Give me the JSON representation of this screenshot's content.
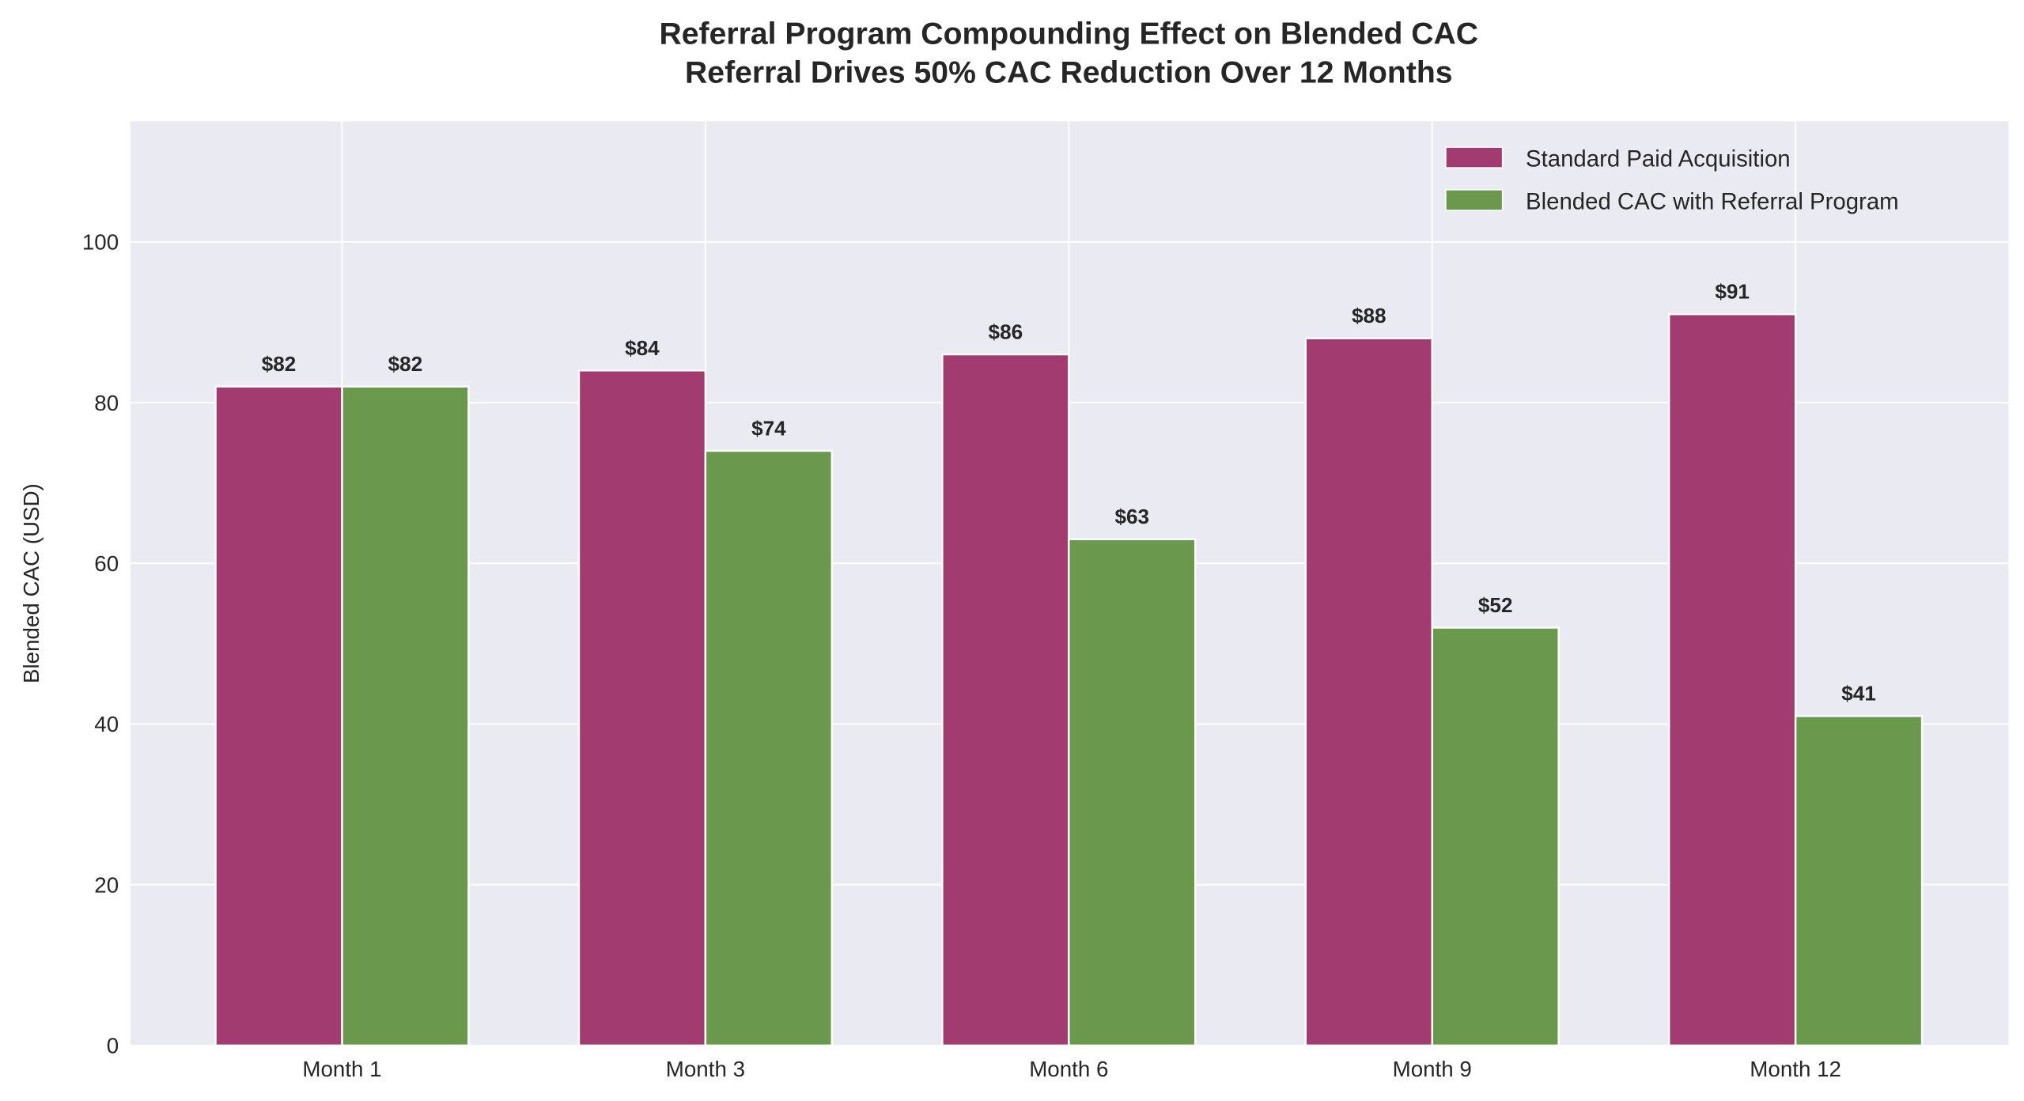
{
  "chart_data": {
    "type": "bar",
    "title": "Referral Program Compounding Effect on Blended CAC",
    "subtitle": "Referral Drives 50% CAC Reduction Over 12 Months",
    "xlabel": "",
    "ylabel": "Blended CAC (USD)",
    "categories": [
      "Month 1",
      "Month 3",
      "Month 6",
      "Month 9",
      "Month 12"
    ],
    "series": [
      {
        "name": "Standard Paid Acquisition",
        "color": "#a23b6f",
        "values": [
          82,
          84,
          86,
          88,
          91
        ],
        "labels": [
          "$82",
          "$84",
          "$86",
          "$88",
          "$91"
        ]
      },
      {
        "name": "Blended CAC with Referral Program",
        "color": "#6a994e",
        "values": [
          82,
          74,
          63,
          52,
          41
        ],
        "labels": [
          "$82",
          "$74",
          "$63",
          "$52",
          "$41"
        ]
      }
    ],
    "ylim": [
      0,
      115
    ],
    "yticks": [
      0,
      20,
      40,
      60,
      80,
      100
    ],
    "grid": true,
    "legend_position": "top-right"
  }
}
